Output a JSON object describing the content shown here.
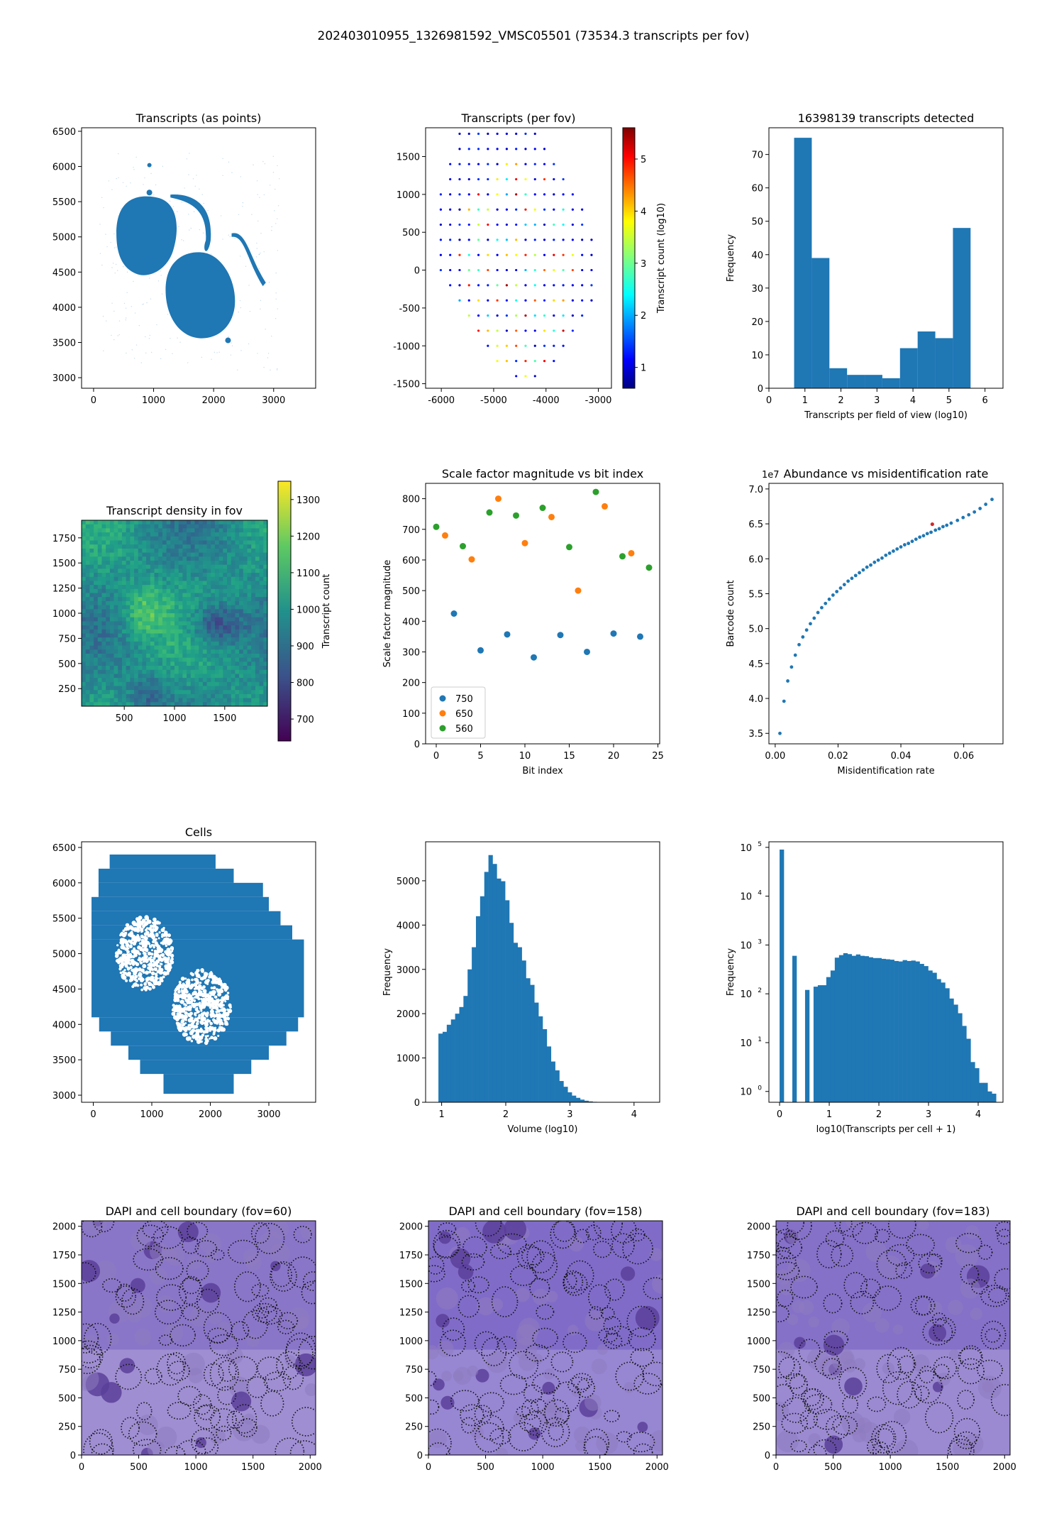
{
  "suptitle": "202403010955_1326981592_VMSC05501 (73534.3 transcripts per fov)",
  "chart_data": [
    {
      "id": "transcripts_points",
      "type": "scatter",
      "title": "Transcripts (as points)",
      "xlabel": "",
      "ylabel": "",
      "xlim": [
        -200,
        3700
      ],
      "ylim": [
        2850,
        6550
      ],
      "xticks": [
        0,
        1000,
        2000,
        3000
      ],
      "yticks": [
        3000,
        3500,
        4000,
        4500,
        5000,
        5500,
        6000,
        6500
      ],
      "color": "#1f77b4",
      "description_regions": [
        {
          "shape": "lobe-upper-left",
          "cx": 880,
          "cy": 5000,
          "rx": 500,
          "ry": 560
        },
        {
          "shape": "lobe-lower-right",
          "cx": 1850,
          "cy": 4250,
          "rx": 520,
          "ry": 560
        }
      ]
    },
    {
      "id": "transcripts_per_fov",
      "type": "scatter",
      "title": "Transcripts (per fov)",
      "xlabel": "",
      "ylabel": "",
      "xlim": [
        -6300,
        -2750
      ],
      "ylim": [
        -1560,
        1880
      ],
      "xticks": [
        -6000,
        -5000,
        -4000,
        -3000
      ],
      "yticks": [
        -1500,
        -1000,
        -500,
        0,
        500,
        1000,
        1500
      ],
      "colorbar": {
        "label": "Transcript count (log10)",
        "ticks": [
          1,
          2,
          3,
          4,
          5
        ],
        "range": [
          0.6,
          5.6
        ],
        "cmap": "jet"
      },
      "grid_rows": [
        {
          "y": 1800,
          "x0": -5650,
          "x1": -4120
        },
        {
          "y": 1600,
          "x0": -5650,
          "x1": -3940
        },
        {
          "y": 1400,
          "x0": -5830,
          "x1": -3760
        },
        {
          "y": 1200,
          "x0": -5830,
          "x1": -3580
        },
        {
          "y": 1000,
          "x0": -6010,
          "x1": -3400
        },
        {
          "y": 800,
          "x0": -6010,
          "x1": -3220
        },
        {
          "y": 600,
          "x0": -6010,
          "x1": -3220
        },
        {
          "y": 400,
          "x0": -6010,
          "x1": -3040
        },
        {
          "y": 200,
          "x0": -6010,
          "x1": -3040
        },
        {
          "y": 0,
          "x0": -6010,
          "x1": -3040
        },
        {
          "y": -200,
          "x0": -5830,
          "x1": -3040
        },
        {
          "y": -400,
          "x0": -5650,
          "x1": -3040
        },
        {
          "y": -600,
          "x0": -5470,
          "x1": -3220
        },
        {
          "y": -800,
          "x0": -5290,
          "x1": -3400
        },
        {
          "y": -1000,
          "x0": -5110,
          "x1": -3580
        },
        {
          "y": -1200,
          "x0": -4930,
          "x1": -3760
        },
        {
          "y": -1400,
          "x0": -4570,
          "x1": -4120
        }
      ],
      "x_step": 180
    },
    {
      "id": "fov_histogram",
      "type": "bar",
      "title": "16398139 transcripts detected",
      "xlabel": "Transcripts per field of view (log10)",
      "ylabel": "Frequency",
      "xlim": [
        0,
        6.5
      ],
      "ylim": [
        0,
        78
      ],
      "xticks": [
        0,
        1,
        2,
        3,
        4,
        5,
        6
      ],
      "yticks": [
        0,
        10,
        20,
        30,
        40,
        50,
        60,
        70
      ],
      "bin_edges": [
        0.7,
        1.19,
        1.68,
        2.17,
        2.66,
        3.15,
        3.64,
        4.13,
        4.62,
        5.11,
        5.6
      ],
      "values": [
        75,
        39,
        6,
        4,
        4,
        3,
        12,
        17,
        15,
        48
      ]
    },
    {
      "id": "density_heatmap",
      "type": "heatmap",
      "title": "Transcript density in fov",
      "xlabel": "",
      "ylabel": "",
      "xlim": [
        75,
        1925
      ],
      "ylim": [
        75,
        1925
      ],
      "xticks": [
        500,
        1000,
        1500
      ],
      "yticks": [
        250,
        500,
        750,
        1000,
        1250,
        1500,
        1750
      ],
      "colorbar": {
        "label": "Transcript count",
        "ticks": [
          700,
          800,
          900,
          1000,
          1100,
          1200,
          1300
        ],
        "range": [
          640,
          1350
        ],
        "cmap": "viridis"
      }
    },
    {
      "id": "scale_factor",
      "type": "scatter",
      "title": "Scale factor magnitude vs bit index",
      "xlabel": "Bit index",
      "ylabel": "Scale factor magnitude",
      "xlim": [
        -1.2,
        25.2
      ],
      "ylim": [
        0,
        850
      ],
      "xticks": [
        0,
        5,
        10,
        15,
        20,
        25
      ],
      "yticks": [
        0,
        100,
        200,
        300,
        400,
        500,
        600,
        700,
        800
      ],
      "legend_position": "lower-left",
      "series": [
        {
          "name": "750",
          "color": "#1f77b4",
          "points": [
            [
              2,
              425
            ],
            [
              5,
              305
            ],
            [
              8,
              357
            ],
            [
              11,
              282
            ],
            [
              14,
              355
            ],
            [
              17,
              300
            ],
            [
              20,
              360
            ],
            [
              23,
              350
            ]
          ]
        },
        {
          "name": "650",
          "color": "#ff7f0e",
          "points": [
            [
              1,
              680
            ],
            [
              4,
              602
            ],
            [
              7,
              800
            ],
            [
              10,
              655
            ],
            [
              13,
              740
            ],
            [
              16,
              500
            ],
            [
              19,
              775
            ],
            [
              22,
              622
            ]
          ]
        },
        {
          "name": "560",
          "color": "#2ca02c",
          "points": [
            [
              0,
              708
            ],
            [
              3,
              645
            ],
            [
              6,
              755
            ],
            [
              9,
              745
            ],
            [
              12,
              770
            ],
            [
              15,
              642
            ],
            [
              18,
              822
            ],
            [
              21,
              612
            ],
            [
              24,
              575
            ]
          ]
        }
      ]
    },
    {
      "id": "abundance",
      "type": "scatter",
      "title": "Abundance vs misidentification rate",
      "xlabel": "Misidentification rate",
      "ylabel": "Barcode count",
      "offset_text": "1e7",
      "xlim": [
        -0.002,
        0.0725
      ],
      "ylim": [
        3.35,
        7.08
      ],
      "xticks": [
        0.0,
        0.02,
        0.04,
        0.06
      ],
      "xtick_labels": [
        "0.00",
        "0.02",
        "0.04",
        "0.06"
      ],
      "yticks": [
        3.5,
        4.0,
        4.5,
        5.0,
        5.5,
        6.0,
        6.5,
        7.0
      ],
      "ytick_labels": [
        "3.5",
        "4.0",
        "4.5",
        "5.0",
        "5.5",
        "6.0",
        "6.5",
        "7.0"
      ],
      "x": [
        0.0015,
        0.0028,
        0.004,
        0.0052,
        0.0064,
        0.0076,
        0.0088,
        0.01,
        0.0112,
        0.0124,
        0.0136,
        0.0148,
        0.016,
        0.0172,
        0.0184,
        0.0196,
        0.0208,
        0.022,
        0.0232,
        0.0244,
        0.0256,
        0.0268,
        0.028,
        0.0292,
        0.0304,
        0.0316,
        0.0328,
        0.034,
        0.0352,
        0.0364,
        0.0376,
        0.0388,
        0.04,
        0.0412,
        0.0424,
        0.0436,
        0.0448,
        0.046,
        0.0472,
        0.0484,
        0.0496,
        0.051,
        0.0522,
        0.0534,
        0.0546,
        0.056,
        0.058,
        0.0598,
        0.0616,
        0.0634,
        0.0652,
        0.067,
        0.069
      ],
      "y": [
        3.5,
        3.96,
        4.25,
        4.45,
        4.62,
        4.77,
        4.88,
        4.98,
        5.07,
        5.15,
        5.23,
        5.3,
        5.36,
        5.42,
        5.48,
        5.53,
        5.58,
        5.63,
        5.68,
        5.72,
        5.76,
        5.8,
        5.84,
        5.88,
        5.91,
        5.95,
        5.98,
        6.01,
        6.05,
        6.08,
        6.11,
        6.14,
        6.17,
        6.2,
        6.22,
        6.25,
        6.28,
        6.31,
        6.33,
        6.36,
        6.38,
        6.41,
        6.43,
        6.46,
        6.48,
        6.51,
        6.55,
        6.59,
        6.63,
        6.67,
        6.72,
        6.78,
        6.85
      ],
      "highlight": {
        "x": 0.05,
        "y": 6.495,
        "color": "#d62728"
      }
    },
    {
      "id": "cells",
      "type": "scatter",
      "title": "Cells",
      "xlabel": "",
      "ylabel": "",
      "xlim": [
        -200,
        3800
      ],
      "ylim": [
        2900,
        6580
      ],
      "xticks": [
        0,
        1000,
        2000,
        3000
      ],
      "yticks": [
        3000,
        3500,
        4000,
        4500,
        5000,
        5500,
        6000,
        6500
      ]
    },
    {
      "id": "volume_hist",
      "type": "bar",
      "title": "",
      "xlabel": "Volume (log10)",
      "ylabel": "Frequency",
      "xlim": [
        0.75,
        4.4
      ],
      "ylim": [
        0,
        5880
      ],
      "xticks": [
        1,
        2,
        3,
        4
      ],
      "yticks": [
        0,
        1000,
        2000,
        3000,
        4000,
        5000
      ],
      "bin_start": 0.95,
      "bin_width": 0.065,
      "values": [
        1550,
        1590,
        1750,
        1870,
        2000,
        2150,
        2400,
        3000,
        3500,
        4200,
        4650,
        5200,
        5580,
        5380,
        5050,
        4990,
        4560,
        4050,
        3600,
        3500,
        3200,
        2800,
        2650,
        2250,
        1940,
        1650,
        1260,
        920,
        720,
        480,
        350,
        225,
        150,
        100,
        60,
        35,
        20,
        10,
        5,
        3
      ]
    },
    {
      "id": "tx_per_cell_hist",
      "type": "bar",
      "title": "",
      "xlabel": "log10(Transcripts per cell + 1)",
      "ylabel": "Frequency",
      "log_y": true,
      "xlim": [
        -0.215,
        4.5
      ],
      "ylim": [
        0.6,
        130000
      ],
      "xticks": [
        0,
        1,
        2,
        3,
        4
      ],
      "ytick_exponents": [
        0,
        1,
        2,
        3,
        4,
        5
      ],
      "bin_start": 0,
      "bin_width": 0.0855,
      "values": [
        90000,
        0,
        0,
        600,
        0,
        0,
        120,
        0,
        140,
        150,
        150,
        220,
        300,
        550,
        620,
        680,
        650,
        600,
        640,
        600,
        590,
        560,
        540,
        540,
        520,
        510,
        500,
        470,
        460,
        490,
        470,
        480,
        460,
        410,
        370,
        300,
        270,
        200,
        170,
        130,
        80,
        60,
        40,
        22,
        12,
        4,
        3,
        1.5,
        1.5,
        1,
        0.9
      ]
    }
  ],
  "dapi_panels": [
    {
      "title": "DAPI and cell boundary (fov=60)",
      "seed": 11,
      "tone": 0.3
    },
    {
      "title": "DAPI and cell boundary (fov=158)",
      "seed": 23,
      "tone": 0.55
    },
    {
      "title": "DAPI and cell boundary (fov=183)",
      "seed": 37,
      "tone": 0.42
    }
  ],
  "dapi_axes": {
    "xlim": [
      0,
      2048
    ],
    "ylim": [
      0,
      2048
    ],
    "xticks": [
      0,
      500,
      1000,
      1500,
      2000
    ],
    "yticks": [
      0,
      250,
      500,
      750,
      1000,
      1250,
      1500,
      1750,
      2000
    ]
  }
}
